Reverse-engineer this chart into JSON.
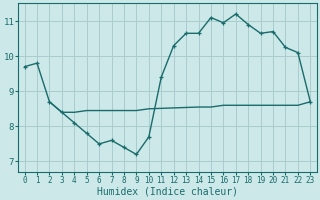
{
  "xlabel": "Humidex (Indice chaleur)",
  "ylabel": "",
  "background_color": "#cce8e8",
  "grid_color": "#aacccc",
  "line_color": "#1a6b6b",
  "xlim": [
    -0.5,
    23.5
  ],
  "ylim": [
    6.7,
    11.5
  ],
  "yticks": [
    7,
    8,
    9,
    10,
    11
  ],
  "xticks": [
    0,
    1,
    2,
    3,
    4,
    5,
    6,
    7,
    8,
    9,
    10,
    11,
    12,
    13,
    14,
    15,
    16,
    17,
    18,
    19,
    20,
    21,
    22,
    23
  ],
  "line1_x": [
    0,
    1,
    2,
    3,
    4,
    5,
    6,
    7,
    8,
    9,
    10,
    11,
    12,
    13,
    14,
    15,
    16,
    17,
    18,
    19,
    20,
    21,
    22,
    23
  ],
  "line1_y": [
    9.7,
    9.8,
    8.7,
    8.4,
    8.1,
    7.8,
    7.5,
    7.6,
    7.4,
    7.2,
    7.7,
    9.4,
    10.3,
    10.65,
    10.65,
    11.1,
    10.95,
    11.2,
    10.9,
    10.65,
    10.7,
    10.25,
    10.1,
    8.7
  ],
  "line2_x": [
    2,
    3,
    4,
    5,
    6,
    7,
    8,
    9,
    10,
    14,
    15,
    16,
    17,
    18,
    19,
    20,
    21,
    22,
    23
  ],
  "line2_y": [
    8.7,
    8.4,
    8.4,
    8.45,
    8.45,
    8.45,
    8.45,
    8.45,
    8.5,
    8.55,
    8.55,
    8.6,
    8.6,
    8.6,
    8.6,
    8.6,
    8.6,
    8.6,
    8.7
  ]
}
